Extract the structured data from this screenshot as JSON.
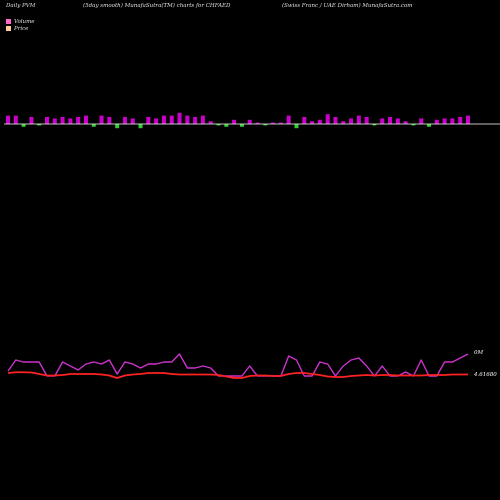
{
  "header": {
    "left": "Daily PVM",
    "center": "(5day smooth) MunafaSutra(TM) charts for CHFAED",
    "right": "(Swiss Franc / UAE Dirham) MunafaSutra.com"
  },
  "legend": [
    {
      "label": "Volume",
      "color": "#ff66cc"
    },
    {
      "label": "Price",
      "color": "#ffcc99"
    }
  ],
  "colors": {
    "volume_up": "#cc00cc",
    "volume_down": "#33cc33",
    "price_line": "#ff2222",
    "pvm_line": "#cc33cc"
  },
  "chart_data": {
    "type": "bar",
    "title": "(5day smooth) MunafaSutra(TM) charts for CHFAED",
    "volume_label": "0M",
    "price_label": "4.61680",
    "volume": [
      6,
      6,
      -2,
      5,
      -1,
      5,
      4,
      5,
      4,
      5,
      6,
      -2,
      6,
      5,
      -3,
      5,
      4,
      -3,
      5,
      4,
      6,
      6,
      8,
      6,
      5,
      6,
      2,
      -1,
      -2,
      3,
      -2,
      3,
      1,
      -1,
      1,
      1,
      6,
      -3,
      5,
      2,
      3,
      7,
      5,
      2,
      4,
      6,
      5,
      -1,
      4,
      5,
      4,
      2,
      -1,
      4,
      -2,
      3,
      4,
      4,
      5,
      6
    ],
    "pvm": [
      7,
      18,
      16,
      16,
      16,
      2,
      2,
      16,
      12,
      8,
      14,
      16,
      14,
      18,
      4,
      16,
      14,
      10,
      14,
      14,
      16,
      16,
      24,
      10,
      10,
      12,
      10,
      2,
      2,
      2,
      2,
      12,
      2,
      2,
      2,
      2,
      22,
      18,
      2,
      2,
      16,
      14,
      2,
      12,
      18,
      20,
      12,
      2,
      12,
      2,
      2,
      6,
      2,
      18,
      2,
      2,
      16,
      16,
      20,
      24
    ],
    "price": [
      2,
      2.3,
      2.3,
      2.2,
      1.6,
      1,
      1,
      1.2,
      1.6,
      1.6,
      1.6,
      1.6,
      1.4,
      1,
      0,
      1,
      1.4,
      1.6,
      2,
      2,
      2,
      1.6,
      1.4,
      1.4,
      1.4,
      1.4,
      1.4,
      1.2,
      0.6,
      0,
      0,
      0.8,
      1,
      1,
      0.8,
      0.8,
      1.6,
      2,
      2,
      1.6,
      1.2,
      0.6,
      0.4,
      0.4,
      0.8,
      1,
      1.2,
      1,
      1.2,
      1.2,
      1,
      1,
      1,
      1,
      1.2,
      1.2,
      1.2,
      1.4,
      1.4,
      1.4
    ]
  }
}
